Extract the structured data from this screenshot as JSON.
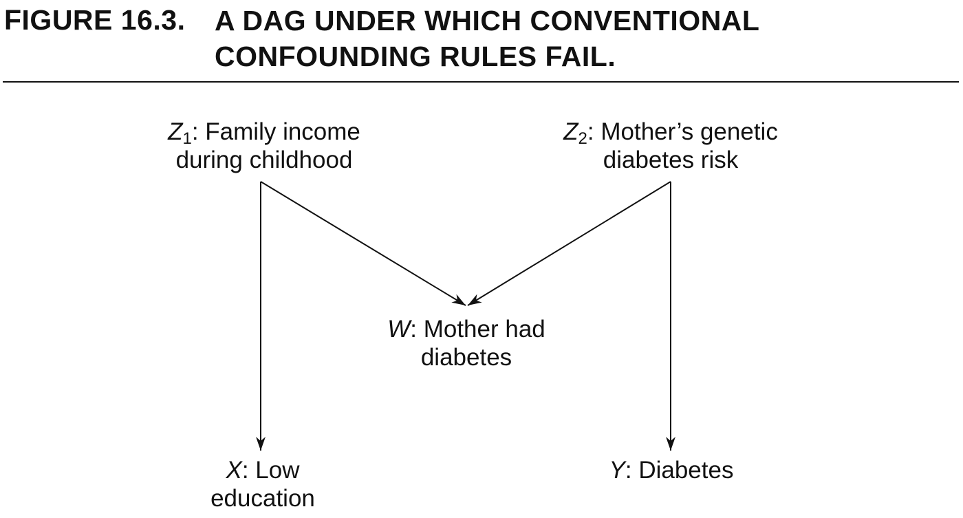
{
  "figure": {
    "number": "FIGURE 16.3.",
    "title_lines": [
      "A DAG UNDER WHICH CONVENTIONAL",
      "CONFOUNDING RULES FAIL."
    ]
  },
  "nodes": {
    "z1": {
      "var": "Z",
      "sub": "1",
      "rest": ": Family income",
      "line2": "during childhood"
    },
    "z2": {
      "var": "Z",
      "sub": "2",
      "rest": ": Mother’s genetic",
      "line2": "diabetes risk"
    },
    "w": {
      "var": "W",
      "rest": ": Mother had",
      "line2": "diabetes"
    },
    "x": {
      "var": "X",
      "rest": ": Low",
      "line2": "education"
    },
    "y": {
      "var": "Y",
      "rest": ": Diabetes"
    }
  },
  "edges": [
    {
      "from": "z1",
      "to": "w"
    },
    {
      "from": "z2",
      "to": "w"
    },
    {
      "from": "z1",
      "to": "x"
    },
    {
      "from": "z2",
      "to": "y"
    }
  ],
  "colors": {
    "ink": "#111111",
    "background": "#ffffff"
  }
}
